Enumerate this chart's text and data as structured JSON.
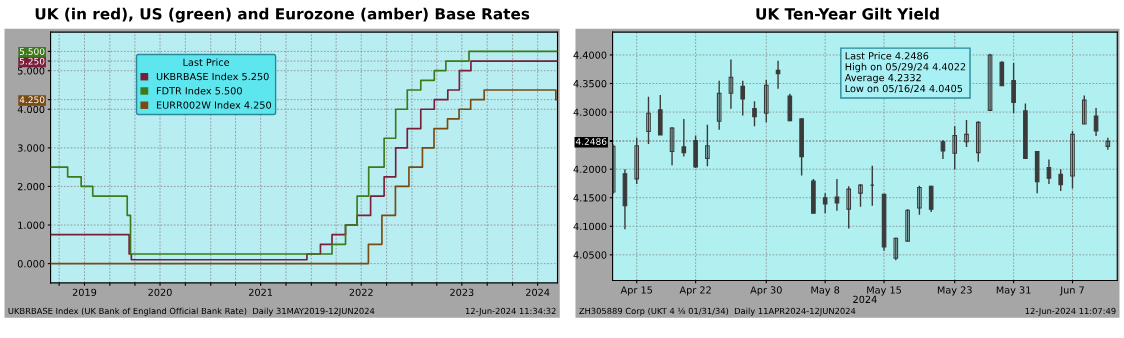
{
  "chart_data": [
    {
      "type": "step",
      "title": "UK (in red), US (green) and Eurozone (amber) Base Rates",
      "legend_title": "Last Price",
      "legend": "top left",
      "grid": true,
      "xlim": [
        "2019-05-31",
        "2024-06-12"
      ],
      "xticks": [
        {
          "value": "2019-07-01",
          "label": null
        },
        {
          "value": "2019-10-01",
          "label": "2019"
        },
        {
          "value": "2020-01-01",
          "label": null
        },
        {
          "value": "2020-04-01",
          "label": null
        },
        {
          "value": "2020-07-01",
          "label": "2020"
        },
        {
          "value": "2020-10-01",
          "label": null
        },
        {
          "value": "2021-01-01",
          "label": null
        },
        {
          "value": "2021-04-01",
          "label": null
        },
        {
          "value": "2021-07-01",
          "label": "2021"
        },
        {
          "value": "2021-10-01",
          "label": null
        },
        {
          "value": "2022-01-01",
          "label": null
        },
        {
          "value": "2022-04-01",
          "label": null
        },
        {
          "value": "2022-07-01",
          "label": "2022"
        },
        {
          "value": "2022-10-01",
          "label": null
        },
        {
          "value": "2023-01-01",
          "label": null
        },
        {
          "value": "2023-04-01",
          "label": null
        },
        {
          "value": "2023-07-01",
          "label": "2023"
        },
        {
          "value": "2023-10-01",
          "label": null
        },
        {
          "value": "2024-01-01",
          "label": null
        },
        {
          "value": "2024-04-01",
          "label": "2024"
        }
      ],
      "ylim": [
        -0.5,
        6.0
      ],
      "yticks": [
        {
          "value": 0,
          "label": "0.000"
        },
        {
          "value": 1,
          "label": "1.000"
        },
        {
          "value": 2,
          "label": "2.000"
        },
        {
          "value": 3,
          "label": "3.000"
        },
        {
          "value": 4,
          "label": "4.000"
        },
        {
          "value": 4.25,
          "label": "4.250"
        },
        {
          "value": 5,
          "label": "5.000"
        },
        {
          "value": 5.25,
          "label": "5.250"
        },
        {
          "value": 5.5,
          "label": "5.500"
        }
      ],
      "series": [
        {
          "name": "UKBRBASE Index 5.250",
          "color": "#7a1e3a",
          "x": [
            "2019-05-31",
            "2020-03-11",
            "2020-03-19",
            "2021-12-16",
            "2022-02-03",
            "2022-03-17",
            "2022-05-05",
            "2022-06-16",
            "2022-08-04",
            "2022-09-22",
            "2022-11-03",
            "2022-12-15",
            "2023-02-02",
            "2023-03-23",
            "2023-05-11",
            "2023-06-22",
            "2023-08-03",
            "2024-06-12"
          ],
          "values": [
            0.75,
            0.25,
            0.1,
            0.25,
            0.5,
            0.75,
            1.0,
            1.25,
            1.75,
            2.25,
            3.0,
            3.5,
            4.0,
            4.25,
            4.5,
            5.0,
            5.25,
            5.25
          ]
        },
        {
          "name": "FDTR Index 5.500",
          "color": "#3d7a1a",
          "x": [
            "2019-05-31",
            "2019-08-01",
            "2019-09-19",
            "2019-10-31",
            "2020-03-04",
            "2020-03-16",
            "2022-03-17",
            "2022-05-05",
            "2022-06-16",
            "2022-07-28",
            "2022-09-22",
            "2022-11-03",
            "2022-12-15",
            "2023-02-02",
            "2023-03-23",
            "2023-05-04",
            "2023-07-27",
            "2024-06-12"
          ],
          "values": [
            2.5,
            2.25,
            2.0,
            1.75,
            1.25,
            0.25,
            0.5,
            1.0,
            1.75,
            2.5,
            3.25,
            4.0,
            4.5,
            4.75,
            5.0,
            5.25,
            5.5,
            5.5
          ]
        },
        {
          "name": "EURR002W Index 4.250",
          "color": "#7a4a10",
          "x": [
            "2019-05-31",
            "2022-07-27",
            "2022-09-14",
            "2022-11-02",
            "2022-12-21",
            "2023-02-08",
            "2023-03-22",
            "2023-05-10",
            "2023-06-21",
            "2023-08-02",
            "2023-09-20",
            "2024-06-06",
            "2024-06-12"
          ],
          "values": [
            0.0,
            0.5,
            1.25,
            2.0,
            2.5,
            3.0,
            3.5,
            3.75,
            4.0,
            4.25,
            4.5,
            4.25,
            4.25
          ]
        }
      ],
      "annotations": [
        "UKBRBASE Index (UK Bank of England Official Bank Rate)  Daily 31MAY2019-12JUN2024",
        "12-Jun-2024 11:34:32"
      ]
    },
    {
      "type": "candlestick",
      "title": "UK Ten-Year Gilt Yield",
      "xlabel": "2024",
      "grid": true,
      "color": "#3a3a3a",
      "categories": [
        null,
        null,
        "Apr 15",
        null,
        null,
        null,
        null,
        "Apr 22",
        null,
        null,
        null,
        null,
        null,
        "Apr 30",
        null,
        null,
        null,
        null,
        "May 8",
        null,
        null,
        null,
        null,
        "May 15",
        null,
        null,
        null,
        null,
        null,
        "May 23",
        null,
        null,
        null,
        null,
        "May 31",
        null,
        null,
        null,
        null,
        "Jun 7",
        null,
        null,
        null
      ],
      "ylim": [
        4.005,
        4.44
      ],
      "yticks": [
        {
          "value": 4.05,
          "label": "4.0500"
        },
        {
          "value": 4.1,
          "label": "4.1000"
        },
        {
          "value": 4.15,
          "label": "4.1500"
        },
        {
          "value": 4.2,
          "label": "4.2000"
        },
        {
          "value": 4.2486,
          "label": "4.2486"
        },
        {
          "value": 4.25,
          "label": null
        },
        {
          "value": 4.3,
          "label": "4.3000"
        },
        {
          "value": 4.35,
          "label": "4.3500"
        },
        {
          "value": 4.4,
          "label": "4.4000"
        }
      ],
      "ohlc": [
        [
          4.16,
          4.243,
          4.157,
          4.24
        ],
        [
          4.192,
          4.2,
          4.095,
          4.136
        ],
        [
          4.183,
          4.255,
          4.174,
          4.241
        ],
        [
          4.266,
          4.327,
          4.244,
          4.298
        ],
        [
          4.304,
          4.33,
          4.26,
          4.26
        ],
        [
          4.231,
          4.274,
          4.207,
          4.272
        ],
        [
          4.239,
          4.288,
          4.222,
          4.229
        ],
        [
          4.25,
          4.259,
          4.202,
          4.204
        ],
        [
          4.219,
          4.278,
          4.205,
          4.241
        ],
        [
          4.284,
          4.355,
          4.269,
          4.333
        ],
        [
          4.333,
          4.392,
          4.306,
          4.361
        ],
        [
          4.345,
          4.355,
          4.294,
          4.323
        ],
        [
          4.306,
          4.319,
          4.275,
          4.292
        ],
        [
          4.298,
          4.356,
          4.282,
          4.347
        ],
        [
          4.373,
          4.39,
          4.341,
          4.367
        ],
        [
          4.328,
          4.332,
          4.284,
          4.285
        ],
        [
          4.288,
          4.289,
          4.189,
          4.222
        ],
        [
          4.179,
          4.183,
          4.123,
          4.123
        ],
        [
          4.15,
          4.158,
          4.123,
          4.139
        ],
        [
          4.151,
          4.183,
          4.127,
          4.141
        ],
        [
          4.13,
          4.17,
          4.096,
          4.165
        ],
        [
          4.158,
          4.174,
          4.134,
          4.172
        ],
        [
          4.172,
          4.206,
          4.136,
          4.172
        ],
        [
          4.156,
          4.157,
          4.057,
          4.064
        ],
        [
          4.044,
          4.08,
          4.0405,
          4.079
        ],
        [
          4.074,
          4.13,
          4.074,
          4.128
        ],
        [
          4.132,
          4.171,
          4.12,
          4.168
        ],
        [
          4.17,
          4.171,
          4.125,
          4.13
        ],
        [
          4.248,
          4.251,
          4.218,
          4.232
        ],
        [
          4.228,
          4.275,
          4.2,
          4.259
        ],
        [
          4.248,
          4.286,
          4.239,
          4.261
        ],
        [
          4.229,
          4.284,
          4.213,
          4.282
        ],
        [
          4.303,
          4.4022,
          4.303,
          4.4
        ],
        [
          4.387,
          4.389,
          4.346,
          4.346
        ],
        [
          4.355,
          4.386,
          4.298,
          4.317
        ],
        [
          4.302,
          4.315,
          4.219,
          4.219
        ],
        [
          4.231,
          4.231,
          4.158,
          4.178
        ],
        [
          4.203,
          4.217,
          4.174,
          4.184
        ],
        [
          4.191,
          4.2,
          4.162,
          4.173
        ],
        [
          4.188,
          4.267,
          4.166,
          4.261
        ],
        [
          4.279,
          4.329,
          4.279,
          4.321
        ],
        [
          4.293,
          4.307,
          4.258,
          4.267
        ],
        [
          4.24,
          4.255,
          4.234,
          4.2486
        ]
      ],
      "annotations": [
        "Last Price 4.2486",
        "High on 05/29/24 4.4022",
        "Average 4.2332",
        "Low on 05/16/24 4.0405",
        "ZH305889 Corp (UKT 4 ⅛ 01/31/34)  Daily 11APR2024-12JUN2024",
        "12-Jun-2024 11:07:49"
      ]
    }
  ]
}
